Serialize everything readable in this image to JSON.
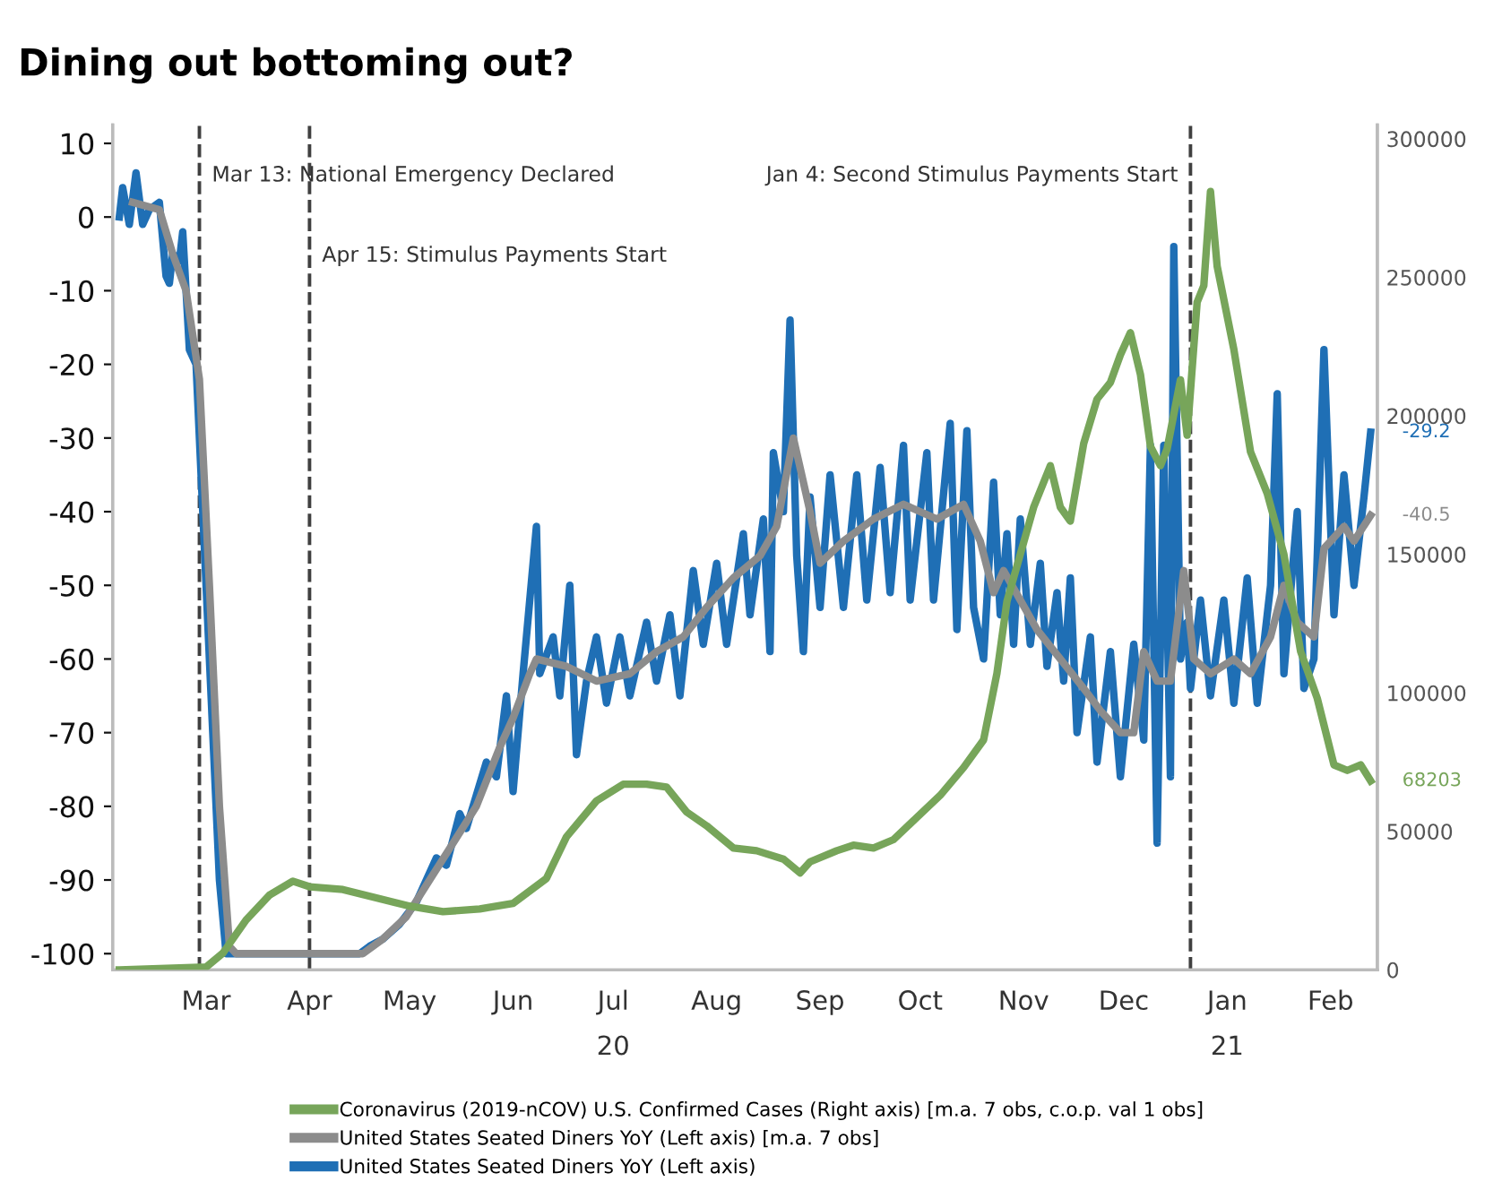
{
  "chart_data": {
    "type": "line",
    "title": "Dining out bottoming out?",
    "xlim": [
      "2020-02-16",
      "2021-03-01"
    ],
    "xticks": [
      {
        "value": "2020-03-15",
        "label": "Mar"
      },
      {
        "value": "2020-04-15",
        "label": "Apr"
      },
      {
        "value": "2020-05-15",
        "label": "May"
      },
      {
        "value": "2020-06-15",
        "label": "Jun"
      },
      {
        "value": "2020-07-15",
        "label": "Jul\n20"
      },
      {
        "value": "2020-08-15",
        "label": "Aug"
      },
      {
        "value": "2020-09-15",
        "label": "Sep"
      },
      {
        "value": "2020-10-15",
        "label": "Oct"
      },
      {
        "value": "2020-11-15",
        "label": "Nov"
      },
      {
        "value": "2020-12-15",
        "label": "Dec"
      },
      {
        "value": "2021-01-15",
        "label": "Jan\n21"
      },
      {
        "value": "2021-02-15",
        "label": "Feb"
      }
    ],
    "ylim": [
      -102.2,
      12.5
    ],
    "yticks": [
      -100,
      -90,
      -80,
      -70,
      -60,
      -50,
      -40,
      -30,
      -20,
      -10,
      0,
      10
    ],
    "y2lim": [
      0,
      305000
    ],
    "y2ticks": [
      0,
      50000,
      100000,
      150000,
      200000,
      250000,
      300000
    ],
    "grid": false,
    "legend": "bottom",
    "marker": "none",
    "line_style": "solid",
    "ref_lines": [
      {
        "axis": "x",
        "value": "2020-03-13",
        "label": "Mar 13: National Emergency Declared",
        "color": "#404040",
        "line_style": "dashed"
      },
      {
        "axis": "x",
        "value": "2020-04-15",
        "label": "Apr 15: Stimulus Payments Start",
        "color": "#404040",
        "line_style": "dashed"
      },
      {
        "axis": "x",
        "value": "2021-01-04",
        "label": "Jan 4: Second Stimulus Payments Start",
        "color": "#404040",
        "line_style": "dashed"
      }
    ],
    "series": [
      {
        "name": "Coronavirus (2019-nCOV) U.S. Confirmed Cases (Right axis) [m.a. 7 obs, c.o.p. val 1 obs]",
        "color": "#77a55a",
        "axis": "y2",
        "x": [
          "2020-02-18",
          "2020-03-15",
          "2020-03-20",
          "2020-03-27",
          "2020-04-03",
          "2020-04-10",
          "2020-04-15",
          "2020-04-25",
          "2020-05-05",
          "2020-05-15",
          "2020-05-25",
          "2020-06-05",
          "2020-06-15",
          "2020-06-25",
          "2020-07-01",
          "2020-07-10",
          "2020-07-18",
          "2020-07-25",
          "2020-07-31",
          "2020-08-06",
          "2020-08-12",
          "2020-08-20",
          "2020-08-27",
          "2020-09-04",
          "2020-09-09",
          "2020-09-12",
          "2020-09-20",
          "2020-09-25",
          "2020-10-01",
          "2020-10-07",
          "2020-10-14",
          "2020-10-21",
          "2020-10-28",
          "2020-11-03",
          "2020-11-07",
          "2020-11-10",
          "2020-11-14",
          "2020-11-18",
          "2020-11-21",
          "2020-11-23",
          "2020-11-26",
          "2020-11-29",
          "2020-12-03",
          "2020-12-07",
          "2020-12-11",
          "2020-12-14",
          "2020-12-17",
          "2020-12-20",
          "2020-12-23",
          "2020-12-26",
          "2020-12-28",
          "2021-01-01",
          "2021-01-03",
          "2021-01-06",
          "2021-01-08",
          "2021-01-10",
          "2021-01-12",
          "2021-01-17",
          "2021-01-22",
          "2021-01-27",
          "2021-02-01",
          "2021-02-06",
          "2021-02-11",
          "2021-02-16",
          "2021-02-20",
          "2021-02-24",
          "2021-02-27"
        ],
        "values": [
          0,
          1000,
          6000,
          18000,
          27000,
          32000,
          30000,
          29000,
          26000,
          23000,
          21000,
          22000,
          24000,
          33000,
          48000,
          61000,
          67000,
          67000,
          66000,
          57000,
          52000,
          44000,
          43000,
          40000,
          35000,
          39000,
          43000,
          45000,
          44000,
          47000,
          55000,
          63000,
          73000,
          83000,
          107000,
          133000,
          150000,
          167000,
          176000,
          182000,
          167000,
          162000,
          190000,
          206000,
          212000,
          222000,
          230000,
          215000,
          189000,
          182000,
          188000,
          213000,
          193000,
          241000,
          247000,
          281000,
          254000,
          224000,
          187000,
          172000,
          150000,
          115000,
          98000,
          74000,
          72000,
          74000,
          68203
        ],
        "value_labels": [
          null,
          null,
          null,
          null,
          null,
          null,
          null,
          null,
          null,
          null,
          null,
          null,
          null,
          null,
          null,
          null,
          null,
          null,
          null,
          null,
          null,
          null,
          null,
          null,
          null,
          null,
          null,
          null,
          null,
          null,
          null,
          null,
          null,
          null,
          null,
          null,
          null,
          null,
          null,
          null,
          null,
          null,
          null,
          null,
          null,
          null,
          null,
          null,
          null,
          null,
          null,
          null,
          null,
          null,
          null,
          null,
          null,
          null,
          null,
          null,
          null,
          null,
          null,
          null,
          null,
          null,
          "68203"
        ]
      },
      {
        "name": "United States Seated Diners YoY (Left axis) [m.a. 7 obs]",
        "color": "#8c8c8c",
        "x": [
          "2020-02-22",
          "2020-03-01",
          "2020-03-05",
          "2020-03-09",
          "2020-03-13",
          "2020-03-16",
          "2020-03-19",
          "2020-03-22",
          "2020-03-24",
          "2020-05-01",
          "2020-05-07",
          "2020-05-14",
          "2020-05-21",
          "2020-05-28",
          "2020-06-04",
          "2020-06-11",
          "2020-06-15",
          "2020-06-20",
          "2020-06-22",
          "2020-07-01",
          "2020-07-10",
          "2020-07-20",
          "2020-07-28",
          "2020-08-05",
          "2020-08-12",
          "2020-08-20",
          "2020-08-28",
          "2020-09-02",
          "2020-09-07",
          "2020-09-12",
          "2020-09-15",
          "2020-09-22",
          "2020-10-01",
          "2020-10-10",
          "2020-10-20",
          "2020-10-28",
          "2020-11-02",
          "2020-11-06",
          "2020-11-09",
          "2020-11-14",
          "2020-11-19",
          "2020-11-26",
          "2020-12-03",
          "2020-12-08",
          "2020-12-14",
          "2020-12-18",
          "2020-12-21",
          "2020-12-25",
          "2020-12-29",
          "2021-01-02",
          "2021-01-05",
          "2021-01-10",
          "2021-01-17",
          "2021-01-22",
          "2021-01-28",
          "2021-02-01",
          "2021-02-05",
          "2021-02-10",
          "2021-02-13",
          "2021-02-19",
          "2021-02-22",
          "2021-02-27"
        ],
        "values": [
          2,
          1,
          -5,
          -10,
          -22,
          -50,
          -80,
          -99,
          -100,
          -100,
          -98,
          -95,
          -90,
          -85,
          -80,
          -72,
          -68,
          -62,
          -60,
          -61,
          -63,
          -62,
          -59,
          -57,
          -53,
          -49,
          -46,
          -42,
          -30,
          -40,
          -47,
          -44,
          -41,
          -39,
          -41,
          -39,
          -44,
          -51,
          -48,
          -52,
          -56,
          -60,
          -64,
          -67,
          -70,
          -70,
          -59,
          -63,
          -63,
          -48,
          -60,
          -62,
          -60,
          -62,
          -57,
          -50,
          -55,
          -57,
          -45,
          -42,
          -44,
          -40.5
        ],
        "value_labels": [
          null,
          null,
          null,
          null,
          null,
          null,
          null,
          null,
          null,
          null,
          null,
          null,
          null,
          null,
          null,
          null,
          null,
          null,
          null,
          null,
          null,
          null,
          null,
          null,
          null,
          null,
          null,
          null,
          null,
          null,
          null,
          null,
          null,
          null,
          null,
          null,
          null,
          null,
          null,
          null,
          null,
          null,
          null,
          null,
          null,
          null,
          null,
          null,
          null,
          null,
          null,
          null,
          null,
          null,
          null,
          null,
          null,
          null,
          null,
          null,
          null,
          "-40.5"
        ]
      },
      {
        "name": "United States Seated Diners YoY (Left axis)",
        "color": "#1f6fb5",
        "x": [
          "2020-02-18",
          "2020-02-19",
          "2020-02-21",
          "2020-02-23",
          "2020-02-25",
          "2020-02-27",
          "2020-03-01",
          "2020-03-03",
          "2020-03-04",
          "2020-03-05",
          "2020-03-07",
          "2020-03-08",
          "2020-03-10",
          "2020-03-12",
          "2020-03-14",
          "2020-03-17",
          "2020-03-19",
          "2020-03-21",
          "2020-04-30",
          "2020-05-03",
          "2020-05-07",
          "2020-05-12",
          "2020-05-17",
          "2020-05-23",
          "2020-05-26",
          "2020-05-30",
          "2020-06-01",
          "2020-06-07",
          "2020-06-10",
          "2020-06-13",
          "2020-06-15",
          "2020-06-18",
          "2020-06-22",
          "2020-06-23",
          "2020-06-27",
          "2020-06-29",
          "2020-07-02",
          "2020-07-04",
          "2020-07-07",
          "2020-07-10",
          "2020-07-13",
          "2020-07-17",
          "2020-07-20",
          "2020-07-25",
          "2020-07-28",
          "2020-08-01",
          "2020-08-04",
          "2020-08-08",
          "2020-08-11",
          "2020-08-15",
          "2020-08-18",
          "2020-08-23",
          "2020-08-25",
          "2020-08-29",
          "2020-08-31",
          "2020-09-01",
          "2020-09-04",
          "2020-09-06",
          "2020-09-08",
          "2020-09-10",
          "2020-09-12",
          "2020-09-15",
          "2020-09-18",
          "2020-09-22",
          "2020-09-26",
          "2020-09-29",
          "2020-10-03",
          "2020-10-06",
          "2020-10-10",
          "2020-10-12",
          "2020-10-17",
          "2020-10-19",
          "2020-10-24",
          "2020-10-26",
          "2020-10-29",
          "2020-10-31",
          "2020-11-03",
          "2020-11-06",
          "2020-11-08",
          "2020-11-10",
          "2020-11-12",
          "2020-11-14",
          "2020-11-17",
          "2020-11-20",
          "2020-11-22",
          "2020-11-25",
          "2020-11-27",
          "2020-11-29",
          "2020-12-01",
          "2020-12-05",
          "2020-12-07",
          "2020-12-11",
          "2020-12-14",
          "2020-12-18",
          "2020-12-21",
          "2020-12-23",
          "2020-12-25",
          "2020-12-27",
          "2020-12-29",
          "2020-12-30",
          "2021-01-01",
          "2021-01-03",
          "2021-01-04",
          "2021-01-07",
          "2021-01-10",
          "2021-01-14",
          "2021-01-17",
          "2021-01-21",
          "2021-01-24",
          "2021-01-28",
          "2021-01-30",
          "2021-02-01",
          "2021-02-05",
          "2021-02-07",
          "2021-02-10",
          "2021-02-13",
          "2021-02-16",
          "2021-02-19",
          "2021-02-22",
          "2021-02-25",
          "2021-02-27"
        ],
        "values": [
          0,
          4,
          -1,
          6,
          -1,
          1,
          2,
          -8,
          -9,
          -5,
          -6,
          -2,
          -18,
          -20,
          -40,
          -70,
          -90,
          -100,
          -100,
          -99,
          -98,
          -96,
          -93,
          -87,
          -88,
          -81,
          -83,
          -74,
          -76,
          -65,
          -78,
          -62,
          -42,
          -62,
          -57,
          -65,
          -50,
          -73,
          -63,
          -57,
          -66,
          -57,
          -65,
          -55,
          -63,
          -54,
          -65,
          -48,
          -58,
          -47,
          -58,
          -43,
          -54,
          -41,
          -59,
          -32,
          -40,
          -14,
          -46,
          -59,
          -38,
          -53,
          -35,
          -53,
          -35,
          -52,
          -34,
          -51,
          -31,
          -52,
          -32,
          -52,
          -28,
          -56,
          -29,
          -53,
          -60,
          -36,
          -54,
          -43,
          -58,
          -41,
          -58,
          -47,
          -61,
          -51,
          -63,
          -49,
          -70,
          -57,
          -74,
          -59,
          -76,
          -58,
          -71,
          -31,
          -85,
          -31,
          -76,
          -4,
          -60,
          -55,
          -64,
          -52,
          -65,
          -52,
          -66,
          -49,
          -66,
          -50,
          -24,
          -62,
          -40,
          -64,
          -60,
          -18,
          -54,
          -35,
          -50,
          -38,
          -29.2
        ],
        "value_labels": [
          null,
          null,
          null,
          null,
          null,
          null,
          null,
          null,
          null,
          null,
          null,
          null,
          null,
          null,
          null,
          null,
          null,
          null,
          null,
          null,
          null,
          null,
          null,
          null,
          null,
          null,
          null,
          null,
          null,
          null,
          null,
          null,
          null,
          null,
          null,
          null,
          null,
          null,
          null,
          null,
          null,
          null,
          null,
          null,
          null,
          null,
          null,
          null,
          null,
          null,
          null,
          null,
          null,
          null,
          null,
          null,
          null,
          null,
          null,
          null,
          null,
          null,
          null,
          null,
          null,
          null,
          null,
          null,
          null,
          null,
          null,
          null,
          null,
          null,
          null,
          null,
          null,
          null,
          null,
          null,
          null,
          null,
          null,
          null,
          null,
          null,
          null,
          null,
          null,
          null,
          null,
          null,
          null,
          null,
          null,
          null,
          null,
          null,
          null,
          null,
          null,
          null,
          null,
          null,
          null,
          null,
          null,
          null,
          null,
          null,
          null,
          null,
          null,
          null,
          null,
          null,
          null,
          null,
          null,
          null,
          "-29.2"
        ]
      }
    ]
  }
}
